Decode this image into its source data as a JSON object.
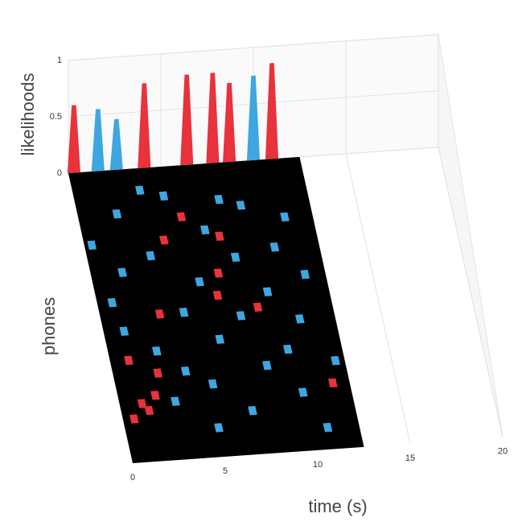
{
  "chart_data": {
    "type": "surface3d",
    "zlabel": "likelihoods",
    "ylabel": "phones",
    "xlabel": "time (s)",
    "xlim": [
      0,
      20
    ],
    "xticks": [
      0,
      5,
      10,
      15,
      20
    ],
    "zlim": [
      0,
      1
    ],
    "zticks": [
      0,
      0.5,
      1
    ],
    "ylim": [
      0,
      40
    ],
    "peaks": {
      "x": [
        0.3,
        1.6,
        2.6,
        4.1,
        6.4,
        7.8,
        8.7,
        10.0,
        11.0
      ],
      "values": [
        0.6,
        0.55,
        0.45,
        0.75,
        0.8,
        0.8,
        0.7,
        0.75,
        0.85
      ],
      "colors": [
        "#e8323c",
        "#3ea6e0",
        "#3ea6e0",
        "#e8323c",
        "#e8323c",
        "#e8323c",
        "#e8323c",
        "#3ea6e0",
        "#e8323c"
      ]
    },
    "cells": [
      {
        "color": "#e8323c",
        "x": [
          0.6,
          1.0,
          1.2,
          1.5,
          2.0,
          2.4,
          3.2,
          4.3,
          5.5,
          6.5,
          6.8,
          7.3,
          8.5,
          11.6
        ],
        "y": [
          6,
          14,
          8,
          7,
          9,
          12,
          20,
          30,
          33,
          22,
          25,
          30,
          20,
          9
        ]
      },
      {
        "color": "#3ea6e0",
        "x": [
          0.4,
          0.8,
          1.1,
          1.7,
          2.1,
          2.6,
          3.0,
          3.4,
          3.9,
          4.5,
          4.8,
          5.2,
          5.7,
          6.1,
          6.6,
          7.0,
          7.5,
          7.9,
          8.3,
          8.8,
          9.2,
          9.6,
          10.1,
          10.6,
          11.0,
          11.4,
          12.0,
          3.6,
          5.0,
          7.7,
          9.9,
          10.8
        ],
        "y": [
          30,
          22,
          18,
          26,
          34,
          15,
          8,
          28,
          12,
          20,
          36,
          10,
          24,
          16,
          31,
          6,
          19,
          27,
          12,
          34,
          22,
          14,
          28,
          18,
          32,
          24,
          12,
          37,
          4,
          35,
          8,
          3
        ]
      }
    ]
  }
}
